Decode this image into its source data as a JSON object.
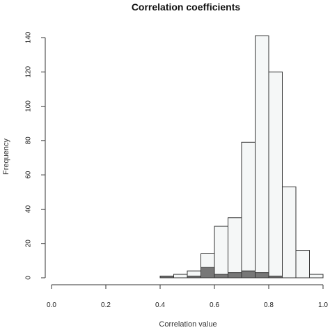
{
  "chart_data": {
    "type": "bar",
    "title": "Correlation coefficients",
    "xlabel": "Correlation value",
    "ylabel": "Frequency",
    "xlim": [
      0.0,
      1.0
    ],
    "ylim": [
      0,
      140
    ],
    "x_ticks": [
      "0.0",
      "0.2",
      "0.4",
      "0.6",
      "0.8",
      "1.0"
    ],
    "y_ticks": [
      "0",
      "20",
      "40",
      "60",
      "80",
      "100",
      "120",
      "140"
    ],
    "grid": false,
    "bin_width": 0.05,
    "series": [
      {
        "fill": "#f5f7f7",
        "bins": [
          {
            "x0": 0.4,
            "x1": 0.45,
            "value": 1
          },
          {
            "x0": 0.45,
            "x1": 0.5,
            "value": 2
          },
          {
            "x0": 0.5,
            "x1": 0.55,
            "value": 4
          },
          {
            "x0": 0.55,
            "x1": 0.6,
            "value": 14
          },
          {
            "x0": 0.6,
            "x1": 0.65,
            "value": 30
          },
          {
            "x0": 0.65,
            "x1": 0.7,
            "value": 35
          },
          {
            "x0": 0.7,
            "x1": 0.75,
            "value": 79
          },
          {
            "x0": 0.75,
            "x1": 0.8,
            "value": 141
          },
          {
            "x0": 0.8,
            "x1": 0.85,
            "value": 120
          },
          {
            "x0": 0.85,
            "x1": 0.9,
            "value": 53
          },
          {
            "x0": 0.9,
            "x1": 0.95,
            "value": 16
          },
          {
            "x0": 0.95,
            "x1": 1.0,
            "value": 2
          }
        ]
      },
      {
        "fill": "#777777",
        "bins": [
          {
            "x0": 0.4,
            "x1": 0.45,
            "value": 1
          },
          {
            "x0": 0.45,
            "x1": 0.5,
            "value": 0
          },
          {
            "x0": 0.5,
            "x1": 0.55,
            "value": 1
          },
          {
            "x0": 0.55,
            "x1": 0.6,
            "value": 6
          },
          {
            "x0": 0.6,
            "x1": 0.65,
            "value": 2
          },
          {
            "x0": 0.65,
            "x1": 0.7,
            "value": 3
          },
          {
            "x0": 0.7,
            "x1": 0.75,
            "value": 4
          },
          {
            "x0": 0.75,
            "x1": 0.8,
            "value": 3
          },
          {
            "x0": 0.8,
            "x1": 0.85,
            "value": 1
          }
        ]
      }
    ]
  }
}
